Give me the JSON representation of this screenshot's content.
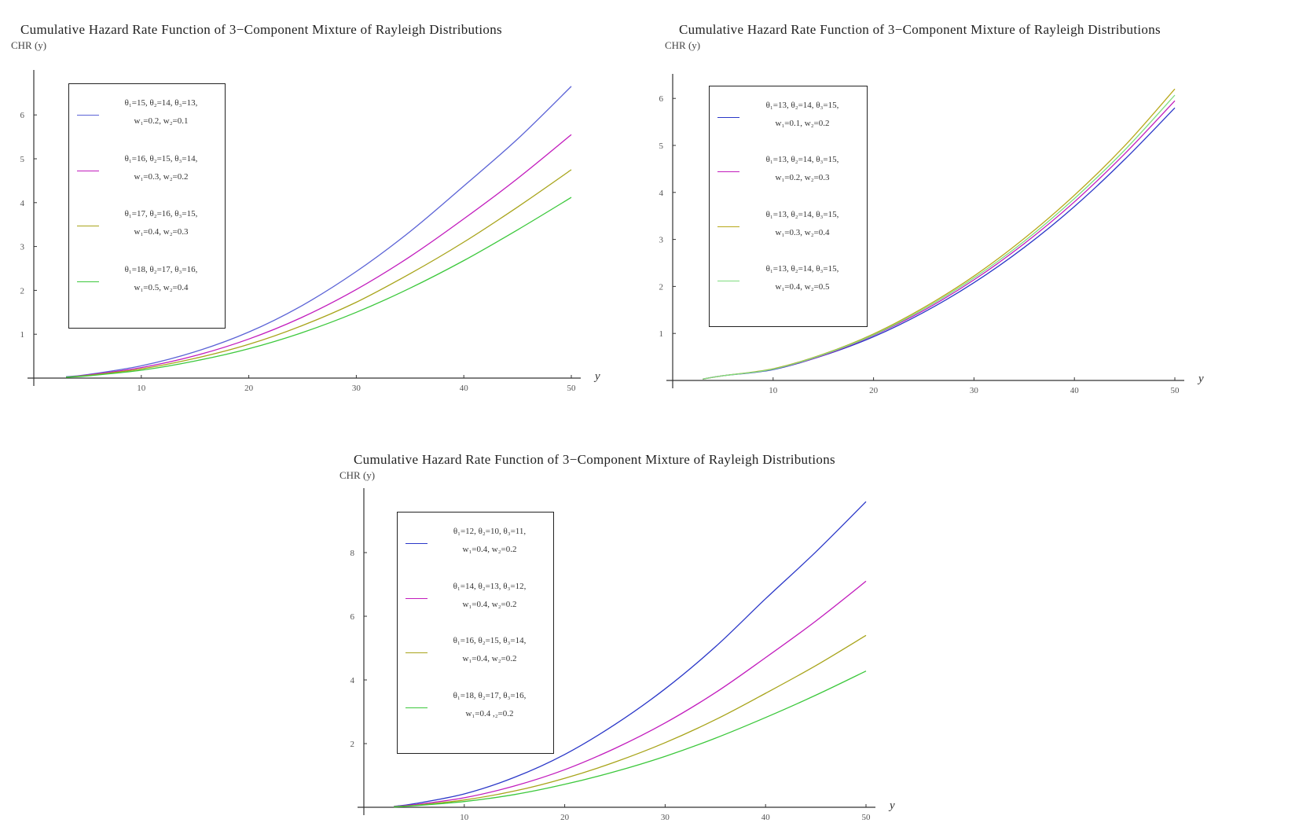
{
  "chart_data": [
    {
      "type": "line",
      "title": "Cumulative Hazard Rate Function of 3−Component Mixture of Rayleigh Distributions",
      "ylabel": "CHR (y)",
      "xlabel": "y",
      "xlim": [
        0,
        50
      ],
      "ylim": [
        0,
        6.5
      ],
      "xticks": [
        10,
        20,
        30,
        40,
        50
      ],
      "yticks": [
        1,
        2,
        3,
        4,
        5,
        6
      ],
      "grid": false,
      "legend_position": "top-left",
      "series": [
        {
          "name": "θ₁=15, θ₂=14, θ₃=13,",
          "name2": "w₁=0.2, w₂=0.1",
          "color": "#5b63d6",
          "x": [
            3,
            5,
            10,
            15,
            20,
            25,
            30,
            35,
            40,
            45,
            50
          ],
          "y": [
            0.03,
            0.08,
            0.28,
            0.6,
            1.05,
            1.66,
            2.43,
            3.34,
            4.38,
            5.45,
            6.65
          ]
        },
        {
          "name": "θ₁=16, θ₂=15, θ₃=14,",
          "name2": "w₁=0.3, w₂=0.2",
          "color": "#c21cbd",
          "x": [
            3,
            5,
            10,
            15,
            20,
            25,
            30,
            35,
            40,
            45,
            50
          ],
          "y": [
            0.02,
            0.07,
            0.24,
            0.51,
            0.89,
            1.39,
            2.02,
            2.77,
            3.63,
            4.55,
            5.55
          ]
        },
        {
          "name": "θ₁=17, θ₂=16, θ₃=15,",
          "name2": "w₁=0.4, w₂=0.3",
          "color": "#a8a41a",
          "x": [
            3,
            5,
            10,
            15,
            20,
            25,
            30,
            35,
            40,
            45,
            50
          ],
          "y": [
            0.02,
            0.06,
            0.21,
            0.45,
            0.77,
            1.2,
            1.73,
            2.38,
            3.1,
            3.9,
            4.75
          ]
        },
        {
          "name": "θ₁=18, θ₂=17, θ₃=16,",
          "name2": "w₁=0.5, w₂=0.4",
          "color": "#3cc83c",
          "x": [
            3,
            5,
            10,
            15,
            20,
            25,
            30,
            35,
            40,
            45,
            50
          ],
          "y": [
            0.02,
            0.05,
            0.18,
            0.39,
            0.67,
            1.04,
            1.5,
            2.05,
            2.68,
            3.38,
            4.12
          ]
        }
      ]
    },
    {
      "type": "line",
      "title": "Cumulative Hazard Rate Function of 3−Component Mixture of Rayleigh Distributions",
      "ylabel": "CHR (y)",
      "xlabel": "y",
      "xlim": [
        0,
        50
      ],
      "ylim": [
        0,
        6.4
      ],
      "xticks": [
        10,
        20,
        30,
        40,
        50
      ],
      "yticks": [
        1,
        2,
        3,
        4,
        5,
        6
      ],
      "grid": false,
      "legend_position": "top-left",
      "series": [
        {
          "name": "θ₁=13, θ₂=14, θ₃=15,",
          "name2": "w₁=0.1, w₂=0.2",
          "color": "#2a37c8",
          "x": [
            3,
            5,
            10,
            15,
            20,
            25,
            30,
            35,
            40,
            45,
            50
          ],
          "y": [
            0.03,
            0.1,
            0.23,
            0.53,
            0.93,
            1.45,
            2.08,
            2.83,
            3.7,
            4.7,
            5.8
          ]
        },
        {
          "name": "θ₁=13, θ₂=14, θ₃=15,",
          "name2": "w₁=0.2, w₂=0.3",
          "color": "#c21cbd",
          "x": [
            3,
            5,
            10,
            15,
            20,
            25,
            30,
            35,
            40,
            45,
            50
          ],
          "y": [
            0.03,
            0.1,
            0.24,
            0.54,
            0.96,
            1.49,
            2.14,
            2.91,
            3.8,
            4.82,
            5.95
          ]
        },
        {
          "name": "θ₁=13, θ₂=14, θ₃=15,",
          "name2": "w₁=0.3, w₂=0.4",
          "color": "#b8a81a",
          "x": [
            3,
            5,
            10,
            15,
            20,
            25,
            30,
            35,
            40,
            45,
            50
          ],
          "y": [
            0.03,
            0.1,
            0.25,
            0.56,
            0.99,
            1.55,
            2.22,
            3.02,
            3.94,
            4.99,
            6.2
          ]
        },
        {
          "name": "θ₁=13, θ₂=14, θ₃=15,",
          "name2": "w₁=0.4, w₂=0.5",
          "color": "#7edc7e",
          "x": [
            3,
            5,
            10,
            15,
            20,
            25,
            30,
            35,
            40,
            45,
            50
          ],
          "y": [
            0.03,
            0.1,
            0.24,
            0.55,
            0.97,
            1.52,
            2.18,
            2.96,
            3.87,
            4.9,
            6.07
          ]
        }
      ]
    },
    {
      "type": "line",
      "title": "Cumulative Hazard Rate Function of 3−Component Mixture of Rayleigh Distributions",
      "ylabel": "CHR (y)",
      "xlabel": "y",
      "xlim": [
        0,
        50
      ],
      "ylim": [
        0,
        9.8
      ],
      "xticks": [
        10,
        20,
        30,
        40,
        50
      ],
      "yticks": [
        2,
        4,
        6,
        8
      ],
      "grid": false,
      "legend_position": "top-left",
      "series": [
        {
          "name": "θ₁=12, θ₂=10, θ₃=11,",
          "name2": "w₁=0.4, w₂=0.2",
          "color": "#2a37c8",
          "x": [
            3,
            5,
            10,
            15,
            20,
            25,
            30,
            35,
            40,
            45,
            50
          ],
          "y": [
            0.03,
            0.11,
            0.42,
            0.94,
            1.66,
            2.6,
            3.72,
            5.04,
            6.55,
            8.02,
            9.6
          ]
        },
        {
          "name": "θ₁=14, θ₂=13, θ₃=12,",
          "name2": "w₁=0.4, w₂=0.2",
          "color": "#c21cbd",
          "x": [
            3,
            5,
            10,
            15,
            20,
            25,
            30,
            35,
            40,
            45,
            50
          ],
          "y": [
            0.02,
            0.08,
            0.3,
            0.67,
            1.18,
            1.85,
            2.65,
            3.6,
            4.7,
            5.85,
            7.1
          ]
        },
        {
          "name": "θ₁=16, θ₂=15, θ₃=14,",
          "name2": "w₁=0.4, w₂=0.2",
          "color": "#a8a41a",
          "x": [
            3,
            5,
            10,
            15,
            20,
            25,
            30,
            35,
            40,
            45,
            50
          ],
          "y": [
            0.02,
            0.06,
            0.23,
            0.51,
            0.91,
            1.42,
            2.03,
            2.75,
            3.58,
            4.45,
            5.4
          ]
        },
        {
          "name": "θ₁=18, θ₂=17, θ₃=16,",
          "name2": "w₁=0.4 ,₂=0.2",
          "color": "#3cc83c",
          "x": [
            3,
            5,
            10,
            15,
            20,
            25,
            30,
            35,
            40,
            45,
            50
          ],
          "y": [
            0.01,
            0.05,
            0.18,
            0.4,
            0.72,
            1.12,
            1.6,
            2.17,
            2.82,
            3.52,
            4.28
          ]
        }
      ]
    }
  ]
}
